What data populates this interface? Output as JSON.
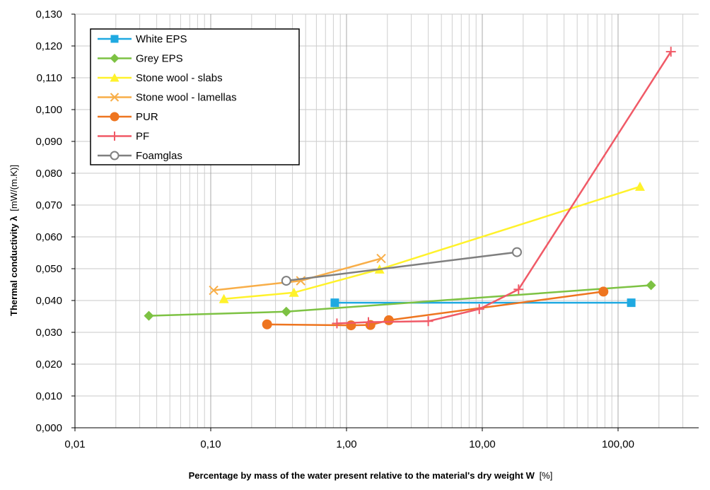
{
  "chart_data": {
    "type": "line",
    "x_scale": "log",
    "xlim": [
      0.01,
      400
    ],
    "ylim": [
      0,
      0.13
    ],
    "x_ticks": [
      "0,01",
      "0,10",
      "1,00",
      "10,00",
      "100,00"
    ],
    "y_ticks": [
      "0,000",
      "0,010",
      "0,020",
      "0,030",
      "0,040",
      "0,050",
      "0,060",
      "0,070",
      "0,080",
      "0,090",
      "0,100",
      "0,110",
      "0,120",
      "0,130"
    ],
    "xlabel": "Percentage by mass of the water present relative to the material's dry weight  W",
    "xlabel_unit": "[%]",
    "ylabel": "Thermal conductivity λ",
    "ylabel_unit": "[mW/(m.K)]",
    "grid": true,
    "legend_position": "top-left",
    "series": [
      {
        "name": "White EPS",
        "color": "#1FA9E1",
        "marker": "square",
        "x": [
          0.82,
          125
        ],
        "y": [
          0.0393,
          0.0393
        ]
      },
      {
        "name": "Grey EPS",
        "color": "#7DC243",
        "marker": "diamond",
        "x": [
          0.035,
          0.36,
          175
        ],
        "y": [
          0.0352,
          0.0365,
          0.0448
        ]
      },
      {
        "name": "Stone wool - slabs",
        "color": "#FFF22B",
        "marker": "triangle",
        "x": [
          0.125,
          0.41,
          1.75,
          145
        ],
        "y": [
          0.0405,
          0.0425,
          0.0498,
          0.0758
        ]
      },
      {
        "name": "Stone wool - lamellas",
        "color": "#F8AE48",
        "marker": "x",
        "x": [
          0.105,
          0.46,
          1.8
        ],
        "y": [
          0.0432,
          0.0462,
          0.0532
        ]
      },
      {
        "name": "PUR",
        "color": "#EE7520",
        "marker": "circle",
        "x": [
          0.26,
          1.08,
          1.5,
          2.05,
          78
        ],
        "y": [
          0.0325,
          0.0322,
          0.0323,
          0.0338,
          0.0428
        ]
      },
      {
        "name": "PF",
        "color": "#F05A67",
        "marker": "plus",
        "x": [
          0.85,
          1.45,
          4.0,
          9.5,
          18.5,
          245
        ],
        "y": [
          0.0328,
          0.0332,
          0.0335,
          0.0373,
          0.0435,
          0.1182
        ]
      },
      {
        "name": "Foamglas",
        "color": "#7F7F7F",
        "marker": "open-circle",
        "x": [
          0.36,
          18
        ],
        "y": [
          0.0462,
          0.0552
        ]
      }
    ]
  }
}
